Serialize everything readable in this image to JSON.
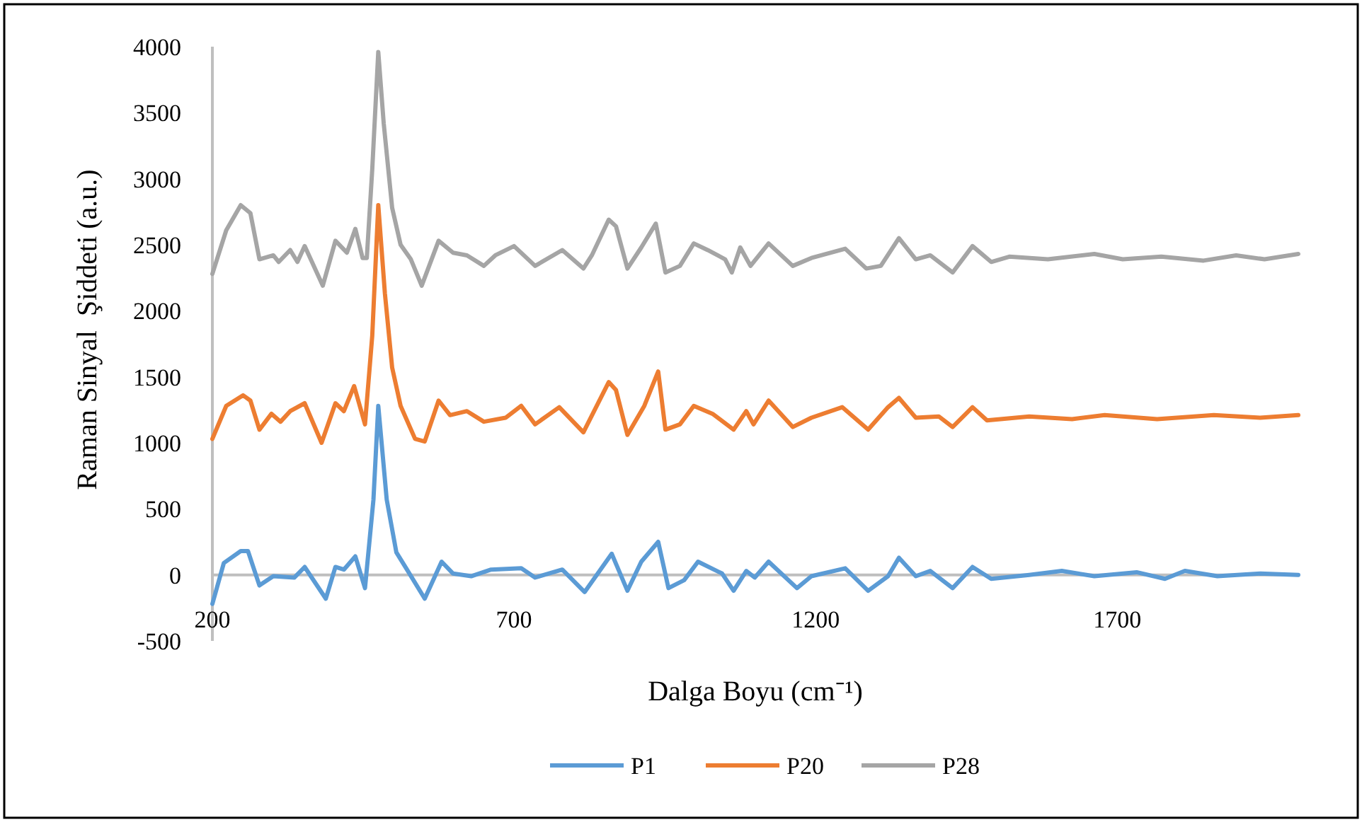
{
  "chart_data": {
    "type": "line",
    "xlabel": "Dalga Boyu (cm⁻¹)",
    "ylabel": "Raman Sinyal  Şiddeti (a.u.)",
    "xlim": [
      200,
      2000
    ],
    "xticks": [
      200,
      700,
      1200,
      1700
    ],
    "ylim": [
      -500,
      4000
    ],
    "yticks": [
      -500,
      0,
      500,
      1000,
      1500,
      2000,
      2500,
      3000,
      3500,
      4000
    ],
    "grid": false,
    "legend": "bottom",
    "marker": "none",
    "line_style": "solid",
    "series": [
      {
        "name": "P1",
        "color": "#5b9bd5",
        "x": [
          200,
          219,
          247,
          259,
          278,
          301,
          336,
          353,
          388,
          404,
          418,
          437,
          453,
          467,
          475,
          489,
          505,
          524,
          552,
          580,
          599,
          629,
          662,
          712,
          735,
          780,
          817,
          862,
          888,
          911,
          939,
          956,
          982,
          1005,
          1045,
          1064,
          1085,
          1099,
          1122,
          1169,
          1193,
          1249,
          1287,
          1320,
          1338,
          1366,
          1390,
          1427,
          1460,
          1491,
          1554,
          1608,
          1662,
          1732,
          1779,
          1812,
          1866,
          1937,
          2000
        ],
        "values": [
          -220,
          90,
          180,
          180,
          -80,
          -10,
          -20,
          60,
          -180,
          60,
          40,
          140,
          -100,
          570,
          1280,
          570,
          170,
          30,
          -180,
          100,
          10,
          -10,
          40,
          50,
          -20,
          40,
          -130,
          160,
          -120,
          100,
          250,
          -100,
          -40,
          100,
          10,
          -120,
          30,
          -20,
          100,
          -100,
          -10,
          50,
          -120,
          -10,
          130,
          -10,
          30,
          -100,
          60,
          -30,
          0,
          30,
          -10,
          20,
          -30,
          30,
          -10,
          10,
          0
        ]
      },
      {
        "name": "P20",
        "color": "#ed7d31",
        "x": [
          200,
          223,
          251,
          263,
          278,
          298,
          313,
          329,
          353,
          381,
          404,
          418,
          435,
          453,
          465,
          475,
          486,
          498,
          512,
          536,
          552,
          575,
          594,
          622,
          650,
          686,
          712,
          735,
          775,
          815,
          857,
          869,
          888,
          916,
          939,
          951,
          975,
          998,
          1029,
          1064,
          1085,
          1097,
          1122,
          1162,
          1193,
          1244,
          1287,
          1320,
          1338,
          1366,
          1404,
          1427,
          1460,
          1484,
          1554,
          1625,
          1679,
          1766,
          1860,
          1937,
          2000
        ],
        "values": [
          1030,
          1280,
          1360,
          1320,
          1100,
          1220,
          1160,
          1240,
          1300,
          1000,
          1300,
          1240,
          1430,
          1140,
          1810,
          2800,
          2130,
          1570,
          1280,
          1030,
          1010,
          1320,
          1210,
          1240,
          1160,
          1190,
          1280,
          1140,
          1270,
          1080,
          1460,
          1400,
          1060,
          1280,
          1540,
          1100,
          1140,
          1280,
          1220,
          1100,
          1240,
          1140,
          1320,
          1120,
          1190,
          1270,
          1100,
          1270,
          1340,
          1190,
          1200,
          1120,
          1270,
          1170,
          1200,
          1180,
          1210,
          1180,
          1210,
          1190,
          1210
        ]
      },
      {
        "name": "P28",
        "color": "#a5a5a5",
        "x": [
          200,
          223,
          247,
          263,
          278,
          301,
          310,
          329,
          341,
          353,
          383,
          404,
          423,
          437,
          449,
          456,
          465,
          475,
          484,
          498,
          512,
          529,
          547,
          575,
          599,
          622,
          650,
          669,
          700,
          735,
          780,
          815,
          829,
          857,
          869,
          888,
          911,
          935,
          951,
          975,
          998,
          1021,
          1050,
          1061,
          1075,
          1092,
          1122,
          1162,
          1193,
          1249,
          1284,
          1308,
          1338,
          1366,
          1390,
          1427,
          1460,
          1491,
          1521,
          1585,
          1662,
          1709,
          1773,
          1843,
          1897,
          1944,
          2000
        ],
        "values": [
          2280,
          2610,
          2800,
          2740,
          2390,
          2420,
          2370,
          2460,
          2370,
          2490,
          2190,
          2530,
          2440,
          2620,
          2400,
          2400,
          3070,
          3960,
          3420,
          2780,
          2500,
          2390,
          2190,
          2530,
          2440,
          2420,
          2340,
          2420,
          2490,
          2340,
          2460,
          2320,
          2420,
          2690,
          2640,
          2320,
          2480,
          2660,
          2290,
          2340,
          2510,
          2460,
          2390,
          2290,
          2480,
          2340,
          2510,
          2340,
          2400,
          2470,
          2320,
          2340,
          2550,
          2390,
          2420,
          2290,
          2490,
          2370,
          2410,
          2390,
          2430,
          2390,
          2410,
          2380,
          2420,
          2390,
          2430
        ]
      }
    ]
  }
}
